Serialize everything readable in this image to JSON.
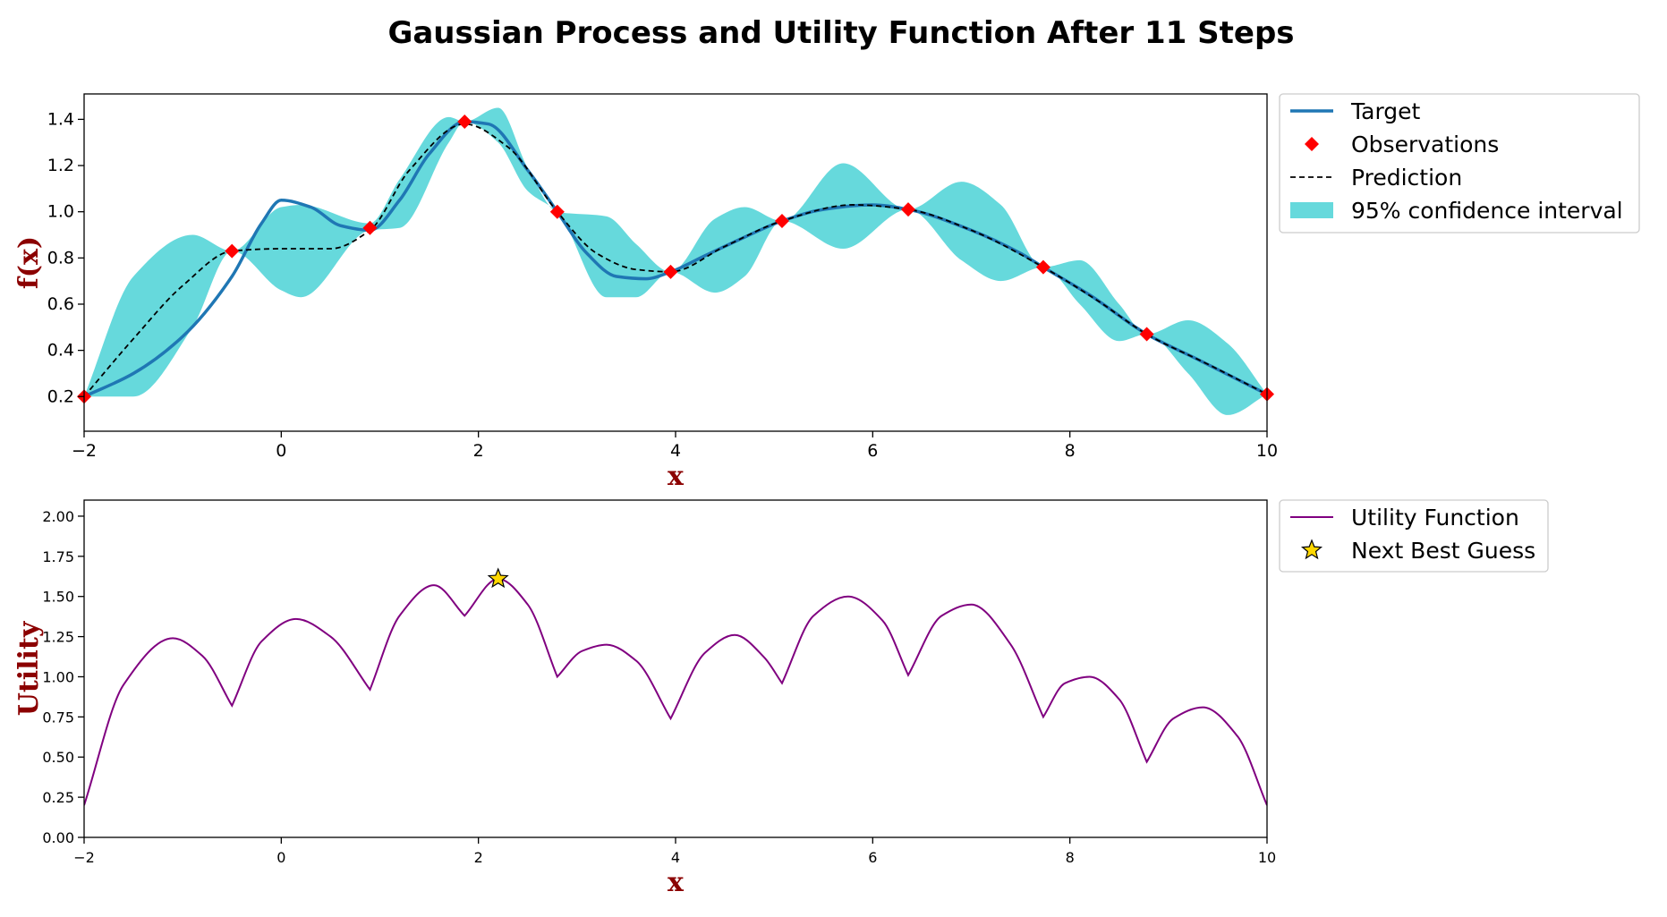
{
  "chart_data": [
    {
      "type": "line",
      "title": "Gaussian Process and Utility Function After 11 Steps",
      "xlabel": "x",
      "ylabel": "f(x)",
      "xlim": [
        -2,
        10
      ],
      "ylim": [
        0.05,
        1.51
      ],
      "x_ticks": [
        "−2",
        "0",
        "2",
        "4",
        "6",
        "8",
        "10"
      ],
      "y_ticks": [
        "0.2",
        "0.4",
        "0.6",
        "0.8",
        "1.0",
        "1.2",
        "1.4"
      ],
      "legend_position": "outside-upper-right",
      "series": [
        {
          "name": "Target",
          "color": "#1f77b4",
          "x": [
            -2,
            -1.5,
            -1,
            -0.5,
            -0.2,
            0,
            0.3,
            0.6,
            0.9,
            1.2,
            1.5,
            1.86,
            2.1,
            2.5,
            2.8,
            3.1,
            3.4,
            3.7,
            3.95,
            4.3,
            4.7,
            5.08,
            5.5,
            6,
            6.36,
            7,
            7.5,
            7.73,
            8.2,
            8.78,
            9.3,
            10
          ],
          "y": [
            0.2,
            0.3,
            0.46,
            0.72,
            0.95,
            1.05,
            1.02,
            0.94,
            0.92,
            1.05,
            1.25,
            1.39,
            1.38,
            1.18,
            1.0,
            0.82,
            0.72,
            0.71,
            0.74,
            0.81,
            0.89,
            0.96,
            1.01,
            1.03,
            1.01,
            0.92,
            0.82,
            0.76,
            0.64,
            0.47,
            0.36,
            0.21
          ]
        },
        {
          "name": "Prediction",
          "color": "#000000",
          "x": [
            -2,
            -1.5,
            -1,
            -0.5,
            0,
            0.5,
            0.9,
            1.3,
            1.86,
            2.3,
            2.8,
            3.2,
            3.6,
            3.95,
            4.5,
            5.08,
            5.8,
            6.36,
            7,
            7.73,
            8.3,
            8.78,
            9.4,
            10
          ],
          "y": [
            0.2,
            0.45,
            0.68,
            0.83,
            0.84,
            0.84,
            0.92,
            1.18,
            1.38,
            1.28,
            1.0,
            0.82,
            0.75,
            0.74,
            0.85,
            0.96,
            1.03,
            1.01,
            0.92,
            0.76,
            0.61,
            0.47,
            0.34,
            0.21
          ]
        },
        {
          "name": "95% confidence interval",
          "color": "#00bfc4",
          "x": [
            -2,
            -1.5,
            -0.9,
            -0.5,
            0,
            0.2,
            0.9,
            1.2,
            1.7,
            1.86,
            2.2,
            2.5,
            2.8,
            3.3,
            3.6,
            3.95,
            4.4,
            4.7,
            5.08,
            5.7,
            6.36,
            6.9,
            7.3,
            7.73,
            8.1,
            8.5,
            8.78,
            9.2,
            9.6,
            10
          ],
          "upper": [
            0.2,
            0.72,
            0.9,
            0.83,
            1.02,
            1.03,
            0.95,
            1.14,
            1.41,
            1.39,
            1.45,
            1.19,
            1.0,
            0.98,
            0.86,
            0.74,
            0.97,
            1.02,
            0.96,
            1.21,
            1.01,
            1.13,
            1.03,
            0.76,
            0.79,
            0.6,
            0.47,
            0.53,
            0.43,
            0.21
          ],
          "lower": [
            0.2,
            0.2,
            0.5,
            0.83,
            0.66,
            0.63,
            0.92,
            0.93,
            1.3,
            1.39,
            1.3,
            1.09,
            1.0,
            0.63,
            0.63,
            0.74,
            0.65,
            0.72,
            0.96,
            0.84,
            1.01,
            0.79,
            0.7,
            0.76,
            0.6,
            0.44,
            0.47,
            0.3,
            0.12,
            0.21
          ]
        },
        {
          "name": "Observations",
          "color": "#ff0000",
          "x": [
            -2,
            -0.5,
            0.9,
            1.86,
            2.8,
            3.95,
            5.08,
            6.36,
            7.73,
            8.78,
            10
          ],
          "y": [
            0.2,
            0.83,
            0.93,
            1.39,
            1.0,
            0.74,
            0.96,
            1.01,
            0.76,
            0.47,
            0.21
          ]
        }
      ]
    },
    {
      "type": "line",
      "xlabel": "x",
      "ylabel": "Utility",
      "xlim": [
        -2,
        10
      ],
      "ylim": [
        0,
        2.1
      ],
      "x_ticks": [
        "−2",
        "0",
        "2",
        "4",
        "6",
        "8",
        "10"
      ],
      "y_ticks": [
        "0.00",
        "0.25",
        "0.50",
        "0.75",
        "1.00",
        "1.25",
        "1.50",
        "1.75",
        "2.00"
      ],
      "legend_position": "outside-upper-right",
      "series": [
        {
          "name": "Utility Function",
          "color": "#800080",
          "x": [
            -2,
            -1.6,
            -1.1,
            -0.8,
            -0.5,
            -0.2,
            0.15,
            0.5,
            0.9,
            1.2,
            1.55,
            1.86,
            2.2,
            2.5,
            2.8,
            3.05,
            3.3,
            3.6,
            3.95,
            4.3,
            4.6,
            4.9,
            5.08,
            5.4,
            5.75,
            6.1,
            6.36,
            6.7,
            7,
            7.4,
            7.73,
            7.95,
            8.2,
            8.5,
            8.78,
            9.05,
            9.35,
            9.7,
            10
          ],
          "y": [
            0.2,
            0.95,
            1.24,
            1.13,
            0.82,
            1.22,
            1.36,
            1.25,
            0.92,
            1.38,
            1.57,
            1.38,
            1.61,
            1.45,
            1.0,
            1.16,
            1.2,
            1.1,
            0.74,
            1.15,
            1.26,
            1.12,
            0.96,
            1.38,
            1.5,
            1.35,
            1.01,
            1.38,
            1.45,
            1.2,
            0.75,
            0.96,
            1.0,
            0.86,
            0.47,
            0.74,
            0.81,
            0.63,
            0.2
          ]
        },
        {
          "name": "Next Best Guess",
          "color": "#ffd700",
          "x": [
            2.2
          ],
          "y": [
            1.61
          ]
        }
      ]
    }
  ]
}
